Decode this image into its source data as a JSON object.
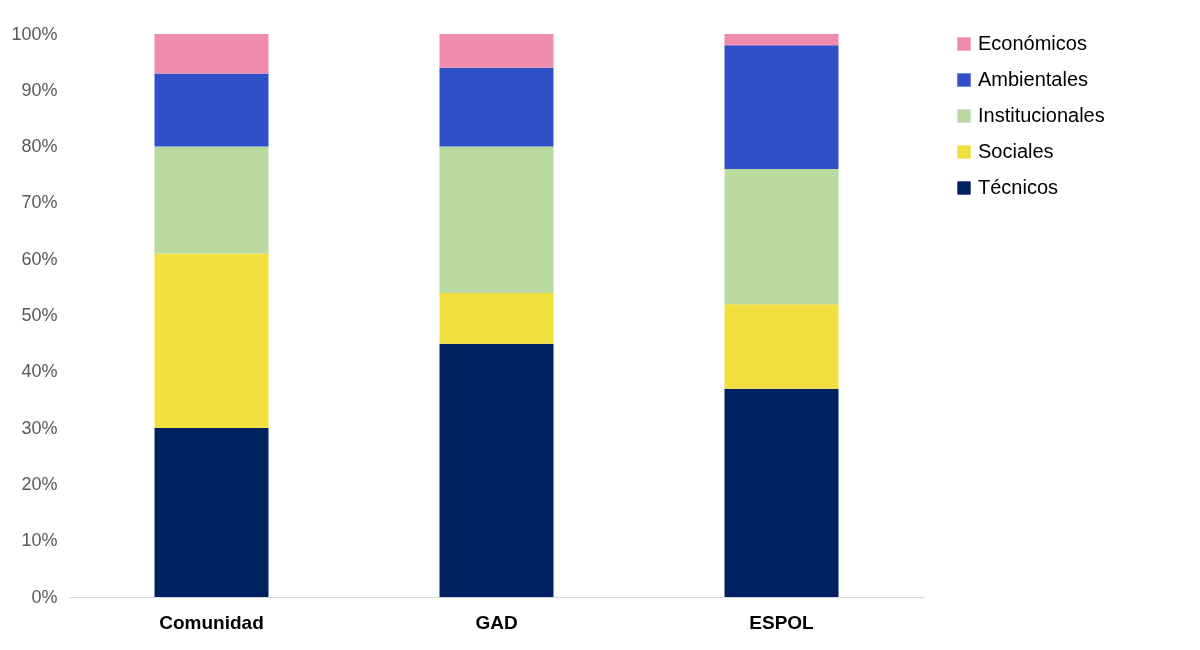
{
  "chart_data": {
    "type": "bar",
    "stacked": true,
    "categories": [
      "Comunidad",
      "GAD",
      "ESPOL"
    ],
    "series": [
      {
        "name": "Técnicos",
        "color": "#002060",
        "values": [
          30,
          45,
          37
        ]
      },
      {
        "name": "Sociales",
        "color": "#f2e040",
        "values": [
          31,
          9,
          15
        ]
      },
      {
        "name": "Institucionales",
        "color": "#b9d9a0",
        "values": [
          19,
          26,
          24
        ]
      },
      {
        "name": "Ambientales",
        "color": "#3050c8",
        "values": [
          13,
          14,
          22
        ]
      },
      {
        "name": "Económicos",
        "color": "#f08cab",
        "values": [
          7,
          6,
          2
        ]
      }
    ],
    "ylim": [
      0,
      100
    ],
    "yticks": [
      {
        "value": 0,
        "label": "0%"
      },
      {
        "value": 10,
        "label": "10%"
      },
      {
        "value": 20,
        "label": "20%"
      },
      {
        "value": 30,
        "label": "30%"
      },
      {
        "value": 40,
        "label": "40%"
      },
      {
        "value": 50,
        "label": "50%"
      },
      {
        "value": 60,
        "label": "60%"
      },
      {
        "value": 70,
        "label": "70%"
      },
      {
        "value": 80,
        "label": "80%"
      },
      {
        "value": 90,
        "label": "90%"
      },
      {
        "value": 100,
        "label": "100%"
      }
    ],
    "grid": false,
    "legend": "right"
  }
}
